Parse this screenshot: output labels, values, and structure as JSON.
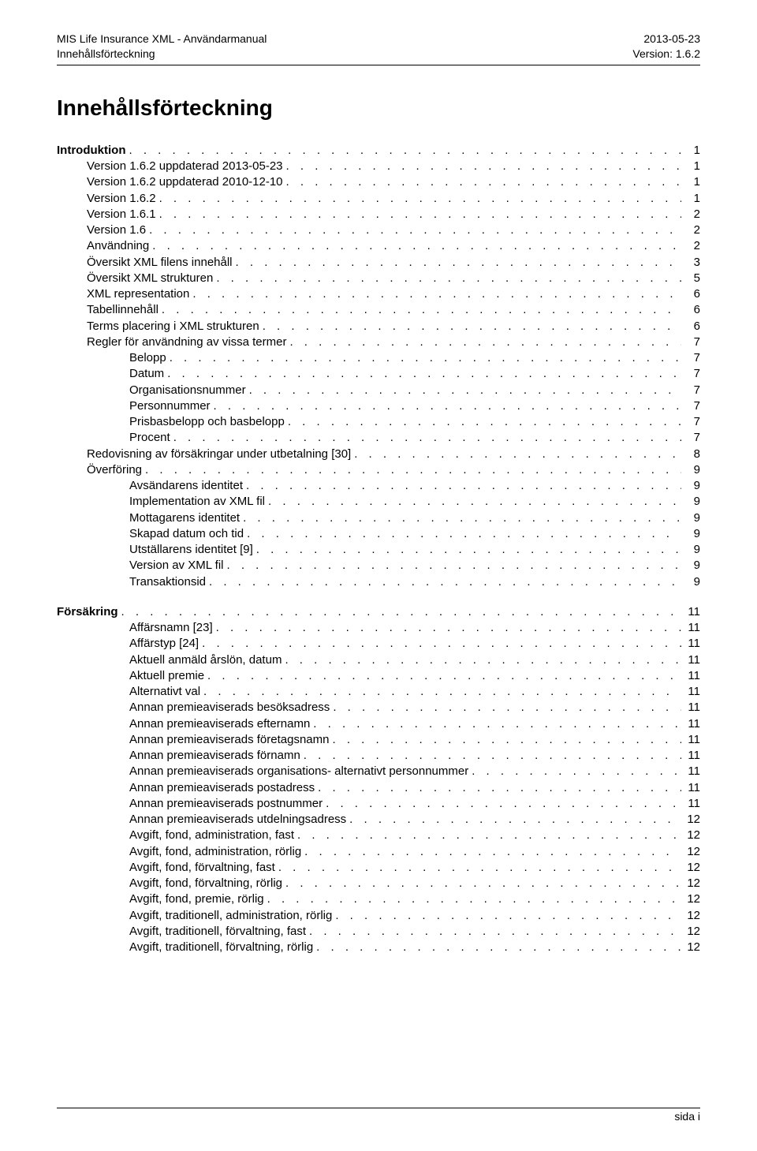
{
  "header": {
    "left1": "MIS Life Insurance XML - Användarmanual",
    "left2": "Innehållsförteckning",
    "right1": "2013-05-23",
    "right2": "Version: 1.6.2"
  },
  "title": "Innehållsförteckning",
  "sections": [
    {
      "rows": [
        {
          "label": "Introduktion",
          "page": "1",
          "indent": 0,
          "bold": true
        },
        {
          "label": "Version 1.6.2 uppdaterad 2013-05-23",
          "page": "1",
          "indent": 1
        },
        {
          "label": "Version 1.6.2 uppdaterad 2010-12-10",
          "page": "1",
          "indent": 1
        },
        {
          "label": "Version 1.6.2",
          "page": "1",
          "indent": 1
        },
        {
          "label": "Version 1.6.1",
          "page": "2",
          "indent": 1
        },
        {
          "label": "Version 1.6",
          "page": "2",
          "indent": 1
        },
        {
          "label": "Användning",
          "page": "2",
          "indent": 1
        },
        {
          "label": "Översikt XML filens innehåll",
          "page": "3",
          "indent": 1
        },
        {
          "label": "Översikt XML strukturen",
          "page": "5",
          "indent": 1
        },
        {
          "label": "XML representation",
          "page": "6",
          "indent": 1
        },
        {
          "label": "Tabellinnehåll",
          "page": "6",
          "indent": 1
        },
        {
          "label": "Terms placering i XML strukturen",
          "page": "6",
          "indent": 1
        },
        {
          "label": "Regler för användning av vissa termer",
          "page": "7",
          "indent": 1
        },
        {
          "label": "Belopp",
          "page": "7",
          "indent": 2
        },
        {
          "label": "Datum",
          "page": "7",
          "indent": 2
        },
        {
          "label": "Organisationsnummer",
          "page": "7",
          "indent": 2
        },
        {
          "label": "Personnummer",
          "page": "7",
          "indent": 2
        },
        {
          "label": "Prisbasbelopp och basbelopp",
          "page": "7",
          "indent": 2
        },
        {
          "label": "Procent",
          "page": "7",
          "indent": 2
        },
        {
          "label": "Redovisning av försäkringar under utbetalning [30]",
          "page": "8",
          "indent": 1
        },
        {
          "label": "Överföring",
          "page": "9",
          "indent": 1
        },
        {
          "label": "Avsändarens identitet",
          "page": "9",
          "indent": 2
        },
        {
          "label": "Implementation av XML fil",
          "page": "9",
          "indent": 2
        },
        {
          "label": "Mottagarens identitet",
          "page": "9",
          "indent": 2
        },
        {
          "label": "Skapad datum och tid",
          "page": "9",
          "indent": 2
        },
        {
          "label": "Utställarens identitet [9]",
          "page": "9",
          "indent": 2
        },
        {
          "label": "Version av XML fil",
          "page": "9",
          "indent": 2
        },
        {
          "label": "Transaktionsid",
          "page": "9",
          "indent": 2
        }
      ]
    },
    {
      "rows": [
        {
          "label": "Försäkring",
          "page": "11",
          "indent": 0,
          "bold": true
        },
        {
          "label": "Affärsnamn [23]",
          "page": "11",
          "indent": 2
        },
        {
          "label": "Affärstyp [24]",
          "page": "11",
          "indent": 2
        },
        {
          "label": "Aktuell anmäld årslön, datum",
          "page": "11",
          "indent": 2
        },
        {
          "label": "Aktuell premie",
          "page": "11",
          "indent": 2
        },
        {
          "label": "Alternativt val",
          "page": "11",
          "indent": 2
        },
        {
          "label": "Annan premieaviserads besöksadress",
          "page": "11",
          "indent": 2
        },
        {
          "label": "Annan premieaviserads efternamn",
          "page": "11",
          "indent": 2
        },
        {
          "label": "Annan premieaviserads företagsnamn",
          "page": "11",
          "indent": 2
        },
        {
          "label": "Annan premieaviserads förnamn",
          "page": "11",
          "indent": 2
        },
        {
          "label": "Annan premieaviserads organisations- alternativt personnummer",
          "page": "11",
          "indent": 2
        },
        {
          "label": "Annan premieaviserads postadress",
          "page": "11",
          "indent": 2
        },
        {
          "label": "Annan premieaviserads postnummer",
          "page": "11",
          "indent": 2
        },
        {
          "label": "Annan premieaviserads utdelningsadress",
          "page": "12",
          "indent": 2
        },
        {
          "label": "Avgift, fond, administration, fast",
          "page": "12",
          "indent": 2
        },
        {
          "label": "Avgift, fond, administration, rörlig",
          "page": "12",
          "indent": 2
        },
        {
          "label": "Avgift, fond, förvaltning, fast",
          "page": "12",
          "indent": 2
        },
        {
          "label": "Avgift, fond, förvaltning, rörlig",
          "page": "12",
          "indent": 2
        },
        {
          "label": "Avgift, fond, premie, rörlig",
          "page": "12",
          "indent": 2
        },
        {
          "label": "Avgift, traditionell, administration, rörlig",
          "page": "12",
          "indent": 2
        },
        {
          "label": "Avgift, traditionell, förvaltning, fast",
          "page": "12",
          "indent": 2
        },
        {
          "label": "Avgift, traditionell, förvaltning, rörlig",
          "page": "12",
          "indent": 2
        }
      ]
    }
  ],
  "footer": {
    "text": "sida  i"
  }
}
